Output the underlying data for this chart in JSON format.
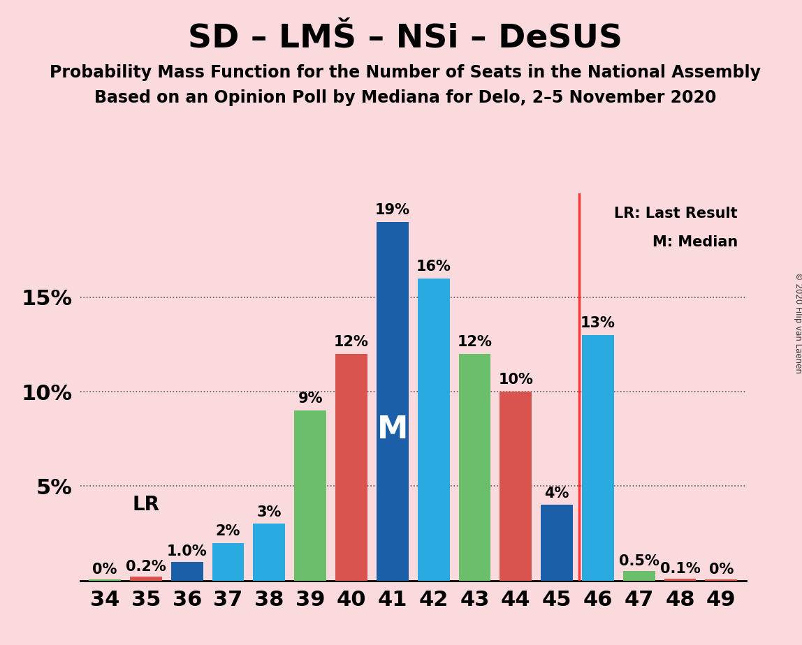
{
  "title": "SD – LMŠ – NSi – DeSUS",
  "subtitle1": "Probability Mass Function for the Number of Seats in the National Assembly",
  "subtitle2": "Based on an Opinion Poll by Mediana for Delo, 2–5 November 2020",
  "copyright": "© 2020 Filip van Laenen",
  "seats": [
    34,
    35,
    36,
    37,
    38,
    39,
    40,
    41,
    42,
    43,
    44,
    45,
    46,
    47,
    48,
    49
  ],
  "values": [
    0.05,
    0.2,
    1.0,
    2.0,
    3.0,
    9.0,
    12.0,
    19.0,
    16.0,
    12.0,
    10.0,
    4.0,
    13.0,
    0.5,
    0.1,
    0.05
  ],
  "labels": [
    "0%",
    "0.2%",
    "1.0%",
    "2%",
    "3%",
    "9%",
    "12%",
    "19%",
    "16%",
    "12%",
    "10%",
    "4%",
    "13%",
    "0.5%",
    "0.1%",
    "0%"
  ],
  "colors": [
    "#5cb85c",
    "#d9534f",
    "#1a5fa8",
    "#29abe2",
    "#5cb85c",
    "#d9534f",
    "#1a5fa8",
    "#29abe2",
    "#1a5fa8",
    "#5cb85c",
    "#d9534f",
    "#1a5fa8",
    "#29abe2",
    "#5cb85c",
    "#d9534f",
    "#d9534f"
  ],
  "lr_seat": 46,
  "median_seat": 41,
  "background_color": "#fadadd",
  "ylim_max": 20.5,
  "grid_color": "#555555",
  "title_fontsize": 34,
  "subtitle_fontsize": 17,
  "label_fontsize": 15,
  "axis_fontsize": 22,
  "lr_vline_color": "#ff3333",
  "bar_width": 0.78
}
